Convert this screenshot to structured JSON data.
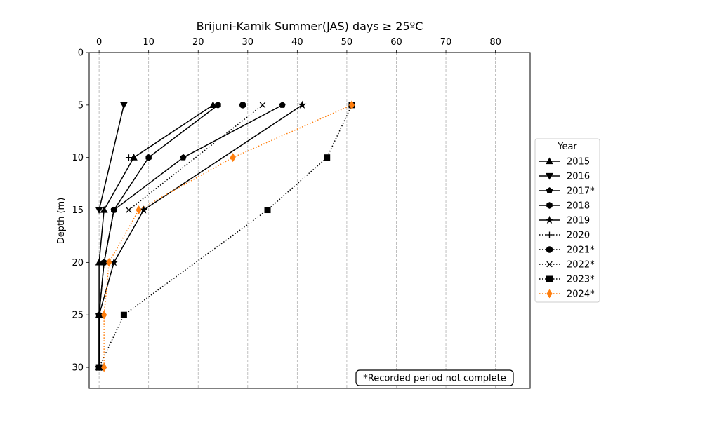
{
  "chart_data": {
    "type": "line",
    "title": "Brijuni-Kamik Summer(JAS) days ≥ 25ºC",
    "xlabel": "",
    "ylabel": "Depth (m)",
    "xlim": [
      -2,
      87
    ],
    "ylim": [
      32,
      0
    ],
    "x_ticks": [
      0,
      10,
      20,
      30,
      40,
      50,
      60,
      70,
      80
    ],
    "y_ticks": [
      0,
      5,
      10,
      15,
      20,
      25,
      30
    ],
    "x_axis_position": "top",
    "y_inverted": true,
    "grid": "vertical dashed",
    "legend_title": "Year",
    "legend_position": "right",
    "annotation": "*Recorded period not complete",
    "series": [
      {
        "name": "2015",
        "marker": "triangle-up",
        "line": "solid",
        "color": "#000000",
        "points": [
          [
            23,
            5
          ],
          [
            7,
            10
          ],
          [
            1,
            15
          ],
          [
            0,
            20
          ],
          [
            0,
            25
          ],
          [
            0,
            30
          ]
        ]
      },
      {
        "name": "2016",
        "marker": "triangle-down",
        "line": "solid",
        "color": "#000000",
        "points": [
          [
            5,
            5
          ],
          [
            0,
            15
          ]
        ]
      },
      {
        "name": "2017*",
        "marker": "pentagon",
        "line": "solid",
        "color": "#000000",
        "points": [
          [
            37,
            5
          ],
          [
            17,
            10
          ],
          [
            3,
            15
          ],
          [
            1,
            20
          ],
          [
            0,
            25
          ],
          [
            0,
            30
          ]
        ]
      },
      {
        "name": "2018",
        "marker": "hexagon",
        "line": "solid",
        "color": "#000000",
        "points": [
          [
            24,
            5
          ],
          [
            10,
            10
          ],
          [
            3,
            15
          ],
          [
            1,
            20
          ],
          [
            0,
            25
          ],
          [
            0,
            30
          ]
        ]
      },
      {
        "name": "2019",
        "marker": "star",
        "line": "solid",
        "color": "#000000",
        "points": [
          [
            41,
            5
          ],
          [
            9,
            15
          ],
          [
            3,
            20
          ],
          [
            0,
            25
          ],
          [
            0,
            30
          ]
        ]
      },
      {
        "name": "2020",
        "marker": "plus",
        "line": "dotted",
        "color": "#000000",
        "points": [
          [
            6,
            10
          ]
        ]
      },
      {
        "name": "2021*",
        "marker": "circle",
        "line": "dotted",
        "color": "#000000",
        "points": [
          [
            29,
            5
          ]
        ]
      },
      {
        "name": "2022*",
        "marker": "x",
        "line": "dotted",
        "color": "#000000",
        "points": [
          [
            33,
            5
          ],
          [
            6,
            15
          ]
        ]
      },
      {
        "name": "2023*",
        "marker": "square",
        "line": "dotted",
        "color": "#000000",
        "points": [
          [
            51,
            5
          ],
          [
            46,
            10
          ],
          [
            34,
            15
          ],
          [
            5,
            25
          ],
          [
            0,
            30
          ]
        ]
      },
      {
        "name": "2024*",
        "marker": "diamond",
        "line": "dotted",
        "color": "#ff7f0e",
        "points": [
          [
            51,
            5
          ],
          [
            27,
            10
          ],
          [
            8,
            15
          ],
          [
            2,
            20
          ],
          [
            1,
            25
          ],
          [
            1,
            30
          ]
        ]
      }
    ]
  }
}
